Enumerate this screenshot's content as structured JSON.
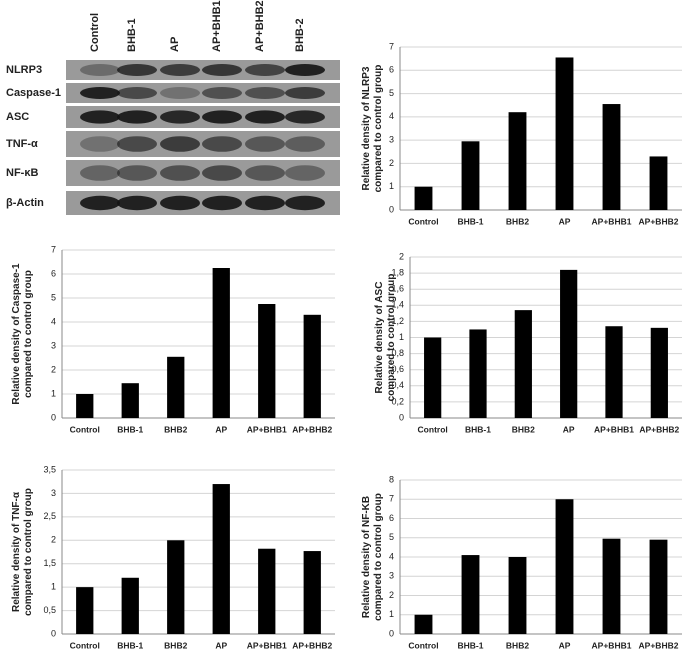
{
  "blot": {
    "lanes": [
      "Control",
      "BHB-1",
      "AP",
      "AP+BHB1",
      "AP+BHB2",
      "BHB-2"
    ],
    "rows": [
      "NLRP3",
      "Caspase-1",
      "ASC",
      "TNF-α",
      "NF-κB",
      "β-Actin"
    ]
  },
  "chart_data": [
    {
      "type": "bar",
      "ylabel": [
        "Relative density of NLRP3",
        "compared to control group"
      ],
      "categories": [
        "Control",
        "BHB-1",
        "BHB2",
        "AP",
        "AP+BHB1",
        "AP+BHB2"
      ],
      "values": [
        1,
        2.95,
        4.2,
        6.55,
        4.55,
        2.3
      ],
      "color": "#000000",
      "ylim": [
        0,
        7
      ],
      "yticks": [
        0,
        1,
        2,
        3,
        4,
        5,
        6,
        7
      ],
      "grid": true
    },
    {
      "type": "bar",
      "ylabel": [
        "Relative density of Caspase-1",
        "compared to control group"
      ],
      "categories": [
        "Control",
        "BHB-1",
        "BHB2",
        "AP",
        "AP+BHB1",
        "AP+BHB2"
      ],
      "values": [
        1,
        1.45,
        2.55,
        6.25,
        4.75,
        4.3
      ],
      "color": "#000000",
      "ylim": [
        0,
        7
      ],
      "yticks": [
        0,
        1,
        2,
        3,
        4,
        5,
        6,
        7
      ],
      "grid": true
    },
    {
      "type": "bar",
      "ylabel": [
        "Relative density of ASC",
        "compared to control group"
      ],
      "categories": [
        "Control",
        "BHB-1",
        "BHB2",
        "AP",
        "AP+BHB1",
        "AP+BHB2"
      ],
      "values": [
        1.0,
        1.1,
        1.34,
        1.84,
        1.14,
        1.12
      ],
      "color": "#000000",
      "ylim": [
        0,
        2
      ],
      "yticks": [
        0,
        {
          "value": 0.2,
          "label": "0,2"
        },
        {
          "value": 0.4,
          "label": "0,4"
        },
        {
          "value": 0.6,
          "label": "0,6"
        },
        {
          "value": 0.8,
          "label": "0,8"
        },
        1,
        {
          "value": 1.2,
          "label": "1,2"
        },
        {
          "value": 1.4,
          "label": "1,4"
        },
        {
          "value": 1.6,
          "label": "1,6"
        },
        {
          "value": 1.8,
          "label": "1,8"
        },
        2
      ],
      "grid": true
    },
    {
      "type": "bar",
      "ylabel": [
        "Relative density of TNF-α",
        "compared to control group"
      ],
      "categories": [
        "Control",
        "BHB-1",
        "BHB2",
        "AP",
        "AP+BHB1",
        "AP+BHB2"
      ],
      "values": [
        1,
        1.2,
        2.0,
        3.2,
        1.82,
        1.77
      ],
      "color": "#000000",
      "ylim": [
        0,
        3.5
      ],
      "yticks": [
        0,
        {
          "value": 0.5,
          "label": "0,5"
        },
        1,
        {
          "value": 1.5,
          "label": "1,5"
        },
        2,
        {
          "value": 2.5,
          "label": "2,5"
        },
        3,
        {
          "value": 3.5,
          "label": "3,5"
        }
      ],
      "grid": true
    },
    {
      "type": "bar",
      "ylabel": [
        "Relative density of NF-KB",
        "compared to control group"
      ],
      "categories": [
        "Control",
        "BHB-1",
        "BHB2",
        "AP",
        "AP+BHB1",
        "AP+BHB2"
      ],
      "values": [
        1,
        4.1,
        4.0,
        7.0,
        4.95,
        4.9
      ],
      "color": "#000000",
      "ylim": [
        0,
        8
      ],
      "yticks": [
        0,
        1,
        2,
        3,
        4,
        5,
        6,
        7,
        8
      ],
      "grid": true
    }
  ]
}
